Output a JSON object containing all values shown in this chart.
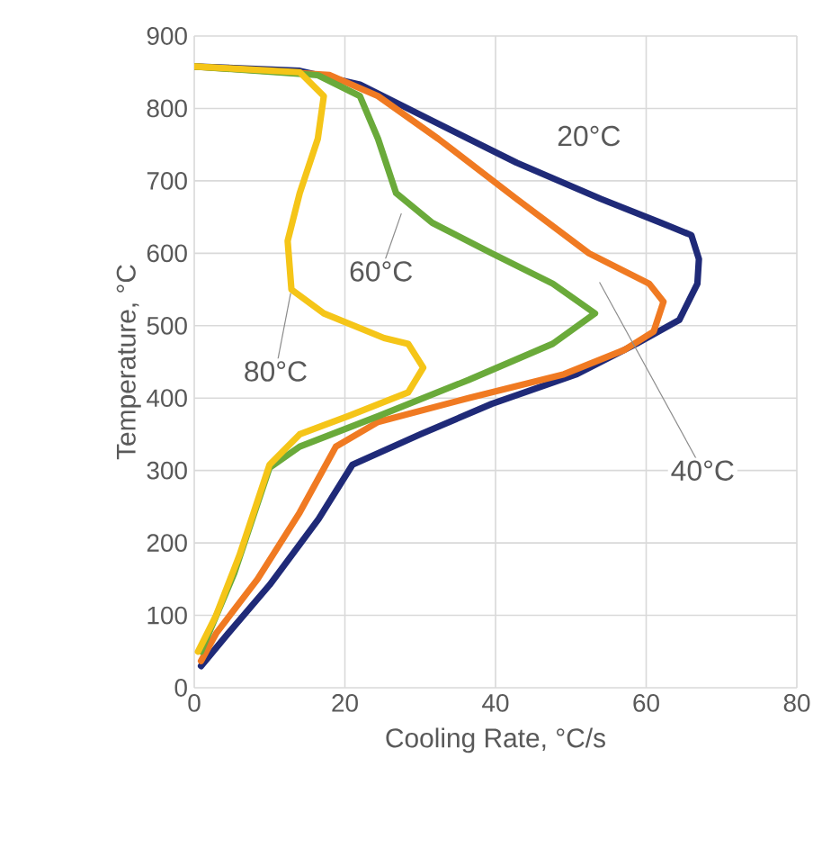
{
  "chart_data": {
    "type": "line",
    "xlabel": "Cooling Rate, °C/s",
    "ylabel": "Temperature, °C",
    "xlim": [
      0,
      80
    ],
    "xticks": [
      0,
      20,
      40,
      60,
      80
    ],
    "ylim": [
      0,
      900
    ],
    "yticks": [
      0,
      100,
      200,
      300,
      400,
      500,
      600,
      700,
      800,
      900
    ],
    "grid": true,
    "marker": "none",
    "line_style": "solid",
    "series": [
      {
        "name": "20°C",
        "color": "#1f2a78",
        "x": [
          0,
          14,
          22,
          31.6,
          42.8,
          54,
          62,
          66,
          67,
          66.8,
          64.4,
          58.7,
          50.8,
          39.5,
          30,
          21,
          16.5,
          10,
          4.5,
          0.9
        ],
        "values": [
          858,
          852,
          833,
          783,
          725,
          675,
          642,
          625,
          592,
          558,
          508,
          475,
          433,
          392,
          350,
          308,
          233,
          142,
          75,
          30
        ]
      },
      {
        "name": "40°C",
        "color": "#f07a22",
        "x": [
          0,
          18,
          24.4,
          32.4,
          42.8,
          52.4,
          60.4,
          62.3,
          61,
          57.2,
          49.1,
          36.4,
          24.4,
          18.8,
          14,
          8.4,
          2.9,
          0.9
        ],
        "values": [
          858,
          846,
          817,
          758,
          675,
          600,
          558,
          533,
          492,
          467,
          433,
          400,
          367,
          333,
          242,
          150,
          75,
          37
        ]
      },
      {
        "name": "60°C",
        "color": "#6aaa3a",
        "x": [
          0,
          16.4,
          22,
          24.4,
          26.8,
          31.6,
          39.5,
          47.6,
          53.2,
          47.6,
          36.4,
          24.4,
          14,
          10,
          5.3,
          0.9
        ],
        "values": [
          858,
          846,
          817,
          758,
          683,
          642,
          600,
          558,
          517,
          475,
          425,
          375,
          333,
          304,
          158,
          50
        ]
      },
      {
        "name": "80°C",
        "color": "#f5c518",
        "x": [
          0,
          14,
          17.2,
          16.4,
          14,
          12.4,
          12.9,
          17.2,
          25.2,
          28.4,
          30.4,
          28.4,
          20.4,
          14,
          10,
          6,
          2.9,
          0.5
        ],
        "values": [
          858,
          850,
          817,
          758,
          683,
          617,
          550,
          517,
          483,
          475,
          442,
          408,
          375,
          350,
          308,
          183,
          100,
          50
        ]
      }
    ]
  }
}
